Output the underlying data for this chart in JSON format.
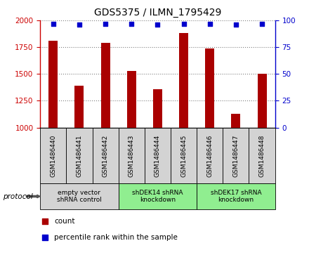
{
  "title": "GDS5375 / ILMN_1795429",
  "samples": [
    "GSM1486440",
    "GSM1486441",
    "GSM1486442",
    "GSM1486443",
    "GSM1486444",
    "GSM1486445",
    "GSM1486446",
    "GSM1486447",
    "GSM1486448"
  ],
  "counts": [
    1810,
    1390,
    1790,
    1530,
    1360,
    1880,
    1740,
    1130,
    1500
  ],
  "percentiles": [
    97,
    96,
    97,
    97,
    96,
    97,
    97,
    96,
    97
  ],
  "ylim_left": [
    1000,
    2000
  ],
  "ylim_right": [
    0,
    100
  ],
  "yticks_left": [
    1000,
    1250,
    1500,
    1750,
    2000
  ],
  "yticks_right": [
    0,
    25,
    50,
    75,
    100
  ],
  "groups": [
    {
      "label": "empty vector\nshRNA control",
      "start": 0,
      "end": 3,
      "color": "#d3d3d3"
    },
    {
      "label": "shDEK14 shRNA\nknockdown",
      "start": 3,
      "end": 6,
      "color": "#90EE90"
    },
    {
      "label": "shDEK17 shRNA\nknockdown",
      "start": 6,
      "end": 9,
      "color": "#90EE90"
    }
  ],
  "bar_color": "#aa0000",
  "dot_color": "#0000cc",
  "tick_color_left": "#cc0000",
  "tick_color_right": "#0000cc",
  "sample_box_color": "#d3d3d3",
  "protocol_label": "protocol",
  "legend_count_label": "count",
  "legend_pct_label": "percentile rank within the sample",
  "fig_width": 4.4,
  "fig_height": 3.63,
  "dpi": 100
}
